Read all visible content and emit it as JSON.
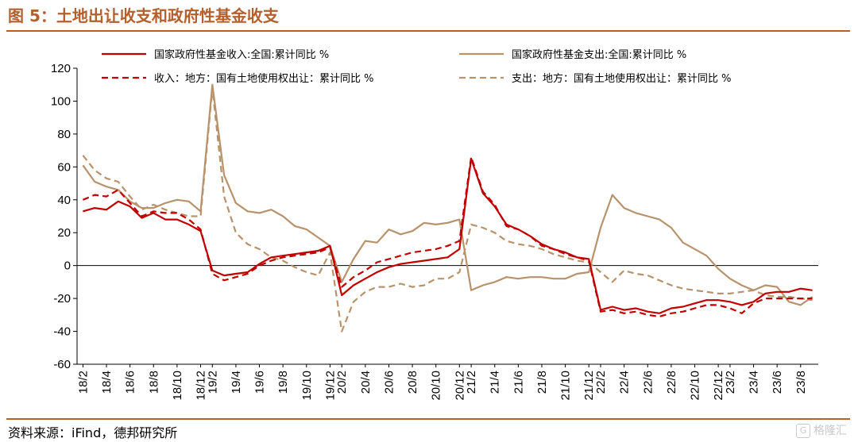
{
  "figure": {
    "title": "图 5：土地出让收支和政府性基金收支",
    "source": "资料来源：iFind，德邦研究所",
    "watermark": "格隆汇"
  },
  "colors": {
    "income": "#c00000",
    "expense": "#b7926b",
    "accent": "#b5602c"
  },
  "chart_data": {
    "type": "line",
    "ylim": [
      -60,
      120
    ],
    "yticks": [
      -60,
      -40,
      -20,
      0,
      20,
      40,
      60,
      80,
      100,
      120
    ],
    "x": [
      "18/2",
      "18/3",
      "18/4",
      "18/5",
      "18/6",
      "18/7",
      "18/8",
      "18/9",
      "18/10",
      "18/11",
      "18/12",
      "19/2",
      "19/3",
      "19/4",
      "19/5",
      "19/6",
      "19/7",
      "19/8",
      "19/9",
      "19/10",
      "19/11",
      "19/12",
      "20/2",
      "20/3",
      "20/4",
      "20/5",
      "20/6",
      "20/7",
      "20/8",
      "20/9",
      "20/10",
      "20/11",
      "20/12",
      "21/2",
      "21/3",
      "21/4",
      "21/5",
      "21/6",
      "21/7",
      "21/8",
      "21/9",
      "21/10",
      "21/11",
      "21/12",
      "22/2",
      "22/3",
      "22/4",
      "22/5",
      "22/6",
      "22/7",
      "22/8",
      "22/9",
      "22/10",
      "22/11",
      "22/12",
      "23/2",
      "23/3",
      "23/4",
      "23/5",
      "23/6",
      "23/7",
      "23/8",
      "23/9"
    ],
    "xtick_labels": [
      "18/2",
      "18/4",
      "18/6",
      "18/8",
      "18/10",
      "18/12",
      "19/2",
      "19/4",
      "19/6",
      "19/8",
      "19/10",
      "19/12",
      "20/2",
      "20/4",
      "20/6",
      "20/8",
      "20/10",
      "20/12",
      "21/2",
      "21/4",
      "21/6",
      "21/8",
      "21/10",
      "21/12",
      "22/2",
      "22/4",
      "22/6",
      "22/8",
      "22/10",
      "22/12",
      "23/2",
      "23/4",
      "23/6",
      "23/8"
    ],
    "legend_placement": "top",
    "series": [
      {
        "name": "国家政府性基金收入:全国:累计同比 %",
        "color": "#c00000",
        "dash": "solid",
        "values": [
          33,
          35,
          34,
          39,
          36,
          29,
          32,
          28,
          28,
          25,
          21,
          -3,
          -6,
          -5,
          -4,
          1,
          5,
          6,
          7,
          8,
          9,
          12,
          -18,
          -12,
          -8,
          -4,
          -1,
          1,
          2,
          3,
          4,
          5,
          10,
          65,
          44,
          36,
          25,
          22,
          18,
          13,
          10,
          8,
          5,
          4,
          -27,
          -25,
          -27,
          -26,
          -28,
          -29,
          -26,
          -25,
          -23,
          -21,
          -21,
          -22,
          -24,
          -22,
          -17,
          -16,
          -16,
          -14,
          -15
        ]
      },
      {
        "name": "国家政府性基金支出:全国:累计同比 %",
        "color": "#b7926b",
        "dash": "solid",
        "values": [
          61,
          51,
          48,
          46,
          39,
          35,
          35,
          38,
          40,
          39,
          33,
          110,
          55,
          38,
          33,
          32,
          34,
          30,
          24,
          22,
          17,
          12,
          -10,
          4,
          15,
          14,
          22,
          19,
          21,
          26,
          25,
          26,
          28,
          -15,
          -12,
          -10,
          -7,
          -8,
          -7,
          -7,
          -8,
          -8,
          -5,
          -4,
          23,
          43,
          35,
          32,
          30,
          28,
          23,
          14,
          10,
          6,
          -2,
          -8,
          -12,
          -15,
          -12,
          -13,
          -22,
          -24,
          -19
        ]
      },
      {
        "name": "收入：地方：国有土地使用权出让：累计同比 %",
        "color": "#c00000",
        "dash": "dashed",
        "values": [
          40,
          43,
          42,
          46,
          38,
          30,
          33,
          32,
          32,
          28,
          22,
          -5,
          -9,
          -7,
          -5,
          0,
          3,
          5,
          6,
          7,
          8,
          11,
          -13,
          -7,
          -3,
          2,
          4,
          6,
          8,
          9,
          10,
          12,
          15,
          66,
          45,
          37,
          24,
          22,
          18,
          12,
          10,
          7,
          5,
          3,
          -28,
          -27,
          -29,
          -28,
          -30,
          -31,
          -29,
          -28,
          -26,
          -24,
          -24,
          -26,
          -29,
          -23,
          -20,
          -20,
          -20,
          -20,
          -20
        ]
      },
      {
        "name": "支出：地方：国有土地使用权出让：累计同比 %",
        "color": "#b7926b",
        "dash": "dashed",
        "values": [
          67,
          58,
          53,
          51,
          42,
          34,
          37,
          34,
          32,
          30,
          30,
          108,
          42,
          20,
          13,
          10,
          5,
          3,
          -1,
          -4,
          -6,
          8,
          -40,
          -22,
          -16,
          -13,
          -13,
          -11,
          -13,
          -12,
          -8,
          -8,
          -4,
          25,
          23,
          20,
          15,
          13,
          12,
          10,
          7,
          5,
          3,
          2,
          -4,
          -10,
          -3,
          -5,
          -6,
          -9,
          -12,
          -14,
          -15,
          -16,
          -17,
          -17,
          -16,
          -15,
          -18,
          -19,
          -19,
          -20,
          -21
        ]
      }
    ]
  }
}
